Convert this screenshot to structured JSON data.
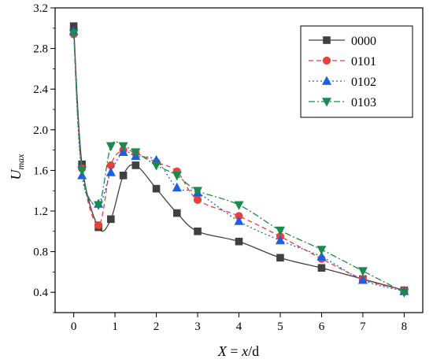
{
  "chart_data": {
    "type": "line",
    "xlabel_var": "X",
    "xlabel_eq": " = ",
    "xlabel_expr": "x",
    "xlabel_unit": "/d",
    "ylabel_main": "U",
    "ylabel_sub": "max",
    "xlim": [
      -0.45,
      8.45
    ],
    "ylim": [
      0.2,
      3.2
    ],
    "xticks": [
      0,
      1,
      2,
      3,
      4,
      5,
      6,
      7,
      8
    ],
    "yticks": [
      0.4,
      0.8,
      1.2,
      1.6,
      2.0,
      2.4,
      2.8,
      3.2
    ],
    "ytick_labels": [
      "0.4",
      "0.8",
      "1.2",
      "1.6",
      "2.0",
      "2.4",
      "2.8",
      "3.2"
    ],
    "legend_position": "top-right",
    "series": [
      {
        "name": "0000",
        "color": "#404040",
        "marker": "square",
        "dash": "",
        "x": [
          0,
          0.2,
          0.6,
          0.9,
          1.2,
          1.5,
          2,
          2.5,
          3,
          4,
          5,
          6,
          7,
          8
        ],
        "y": [
          3.02,
          1.66,
          1.04,
          1.12,
          1.55,
          1.65,
          1.42,
          1.18,
          1.0,
          0.9,
          0.74,
          0.64,
          0.53,
          0.42
        ]
      },
      {
        "name": "0101",
        "color": "#e8413b",
        "marker": "circle",
        "dash": "6,4",
        "x": [
          0,
          0.2,
          0.6,
          0.9,
          1.2,
          1.5,
          2,
          2.5,
          3,
          4,
          5,
          6,
          7,
          8
        ],
        "y": [
          2.94,
          1.62,
          1.06,
          1.65,
          1.8,
          1.77,
          1.68,
          1.59,
          1.31,
          1.15,
          0.95,
          0.73,
          0.53,
          0.42
        ]
      },
      {
        "name": "0102",
        "color": "#1e5fe0",
        "marker": "triangle-up",
        "dash": "2,3",
        "x": [
          0,
          0.2,
          0.6,
          0.9,
          1.2,
          1.5,
          2,
          2.5,
          3,
          4,
          5,
          6,
          7,
          8
        ],
        "y": [
          2.97,
          1.55,
          1.27,
          1.58,
          1.78,
          1.74,
          1.7,
          1.43,
          1.38,
          1.1,
          0.91,
          0.75,
          0.52,
          0.41
        ]
      },
      {
        "name": "0103",
        "color": "#1b8a4c",
        "marker": "triangle-down",
        "dash": "8,3,2,3",
        "x": [
          0,
          0.2,
          0.6,
          0.9,
          1.2,
          1.5,
          2,
          2.5,
          3,
          4,
          5,
          6,
          7,
          8
        ],
        "y": [
          2.95,
          1.6,
          1.26,
          1.84,
          1.84,
          1.78,
          1.65,
          1.55,
          1.4,
          1.26,
          1.01,
          0.82,
          0.61,
          0.4
        ]
      }
    ]
  }
}
